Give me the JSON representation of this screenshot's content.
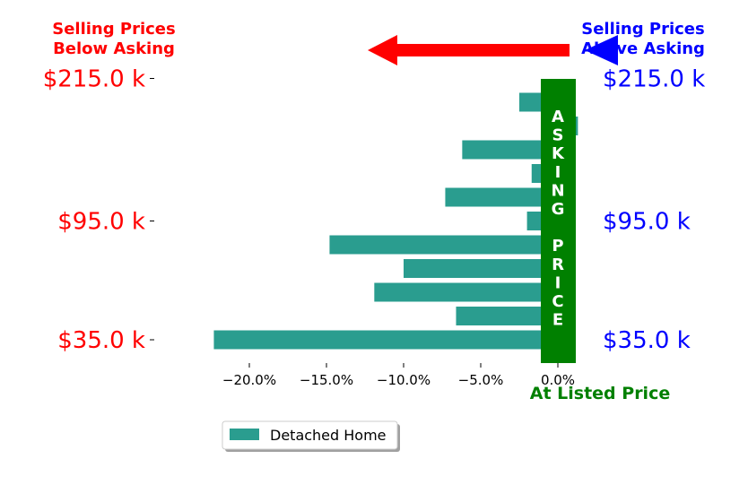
{
  "header": {
    "left_title_line1": "Selling Prices",
    "left_title_line2": "Below Asking",
    "right_title_line1": "Selling Prices",
    "right_title_line2": "Above Asking"
  },
  "asking_bar": {
    "letters": [
      "A",
      "S",
      "K",
      "I",
      "N",
      "G",
      "",
      "P",
      "R",
      "I",
      "C",
      "E"
    ]
  },
  "x_axis_caption": "At Listed Price",
  "legend": {
    "label": "Detached Home"
  },
  "colors": {
    "bar": "#2a9d8f",
    "asking": "#008000",
    "below": "#ff0000",
    "above": "#0000ff",
    "arrow": "#ff0000",
    "arrow_right_head": "#0000ff"
  },
  "chart_data": {
    "type": "bar",
    "orientation": "horizontal",
    "series": [
      {
        "name": "Detached Home",
        "values": [
          -22.3,
          -6.6,
          -11.9,
          -10.0,
          -14.8,
          -2.0,
          -7.3,
          -1.7,
          -6.2,
          1.3,
          -2.5
        ]
      }
    ],
    "xlim": [
      -24,
      1.5
    ],
    "xticks": [
      -20,
      -15,
      -10,
      -5,
      0
    ],
    "xtick_labels": [
      "−20.0%",
      "−15.0%",
      "−10.0%",
      "−5.0%",
      "0.0%"
    ],
    "ytick_labels": [
      {
        "label": "$35.0 k",
        "bar_index": 0
      },
      {
        "label": "$95.0 k",
        "bar_index": 5
      },
      {
        "label": "$215.0 k",
        "bar_index": 11
      }
    ],
    "legend_position": "bottom-left",
    "grid": false
  }
}
